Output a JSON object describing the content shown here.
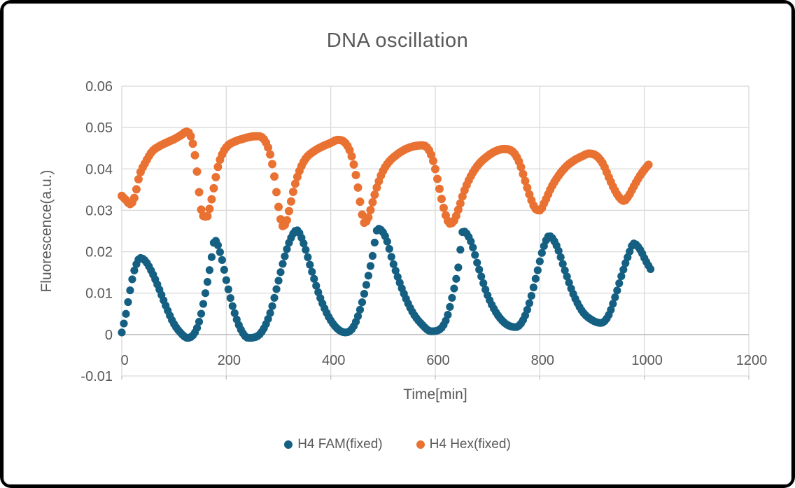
{
  "figure": {
    "outer_border_color": "#000000",
    "inner_border_color": "#d9d9d9",
    "background_color": "#ffffff"
  },
  "chart_data": {
    "type": "scatter",
    "title": "DNA oscillation",
    "xlabel": "Time[min]",
    "ylabel": "Fluorescence(a.u.)",
    "grid": true,
    "legend_position": "bottom",
    "marker": "circle",
    "sample_interval_min": 4,
    "x_axis": {
      "min": 0,
      "max": 1200,
      "tick_step": 200,
      "tick_labels": [
        "0",
        "200",
        "400",
        "600",
        "800",
        "1000",
        "1200"
      ]
    },
    "y_axis": {
      "min": -0.01,
      "max": 0.06,
      "tick_step": 0.01,
      "tick_labels": [
        "0.06",
        "0.05",
        "0.04",
        "0.03",
        "0.02",
        "0.01",
        "0",
        "-0.01"
      ]
    },
    "styles": {
      "text_color": "#595959",
      "gridline_color": "#d9d9d9",
      "axis_line_color": "#bfbfbf"
    },
    "series": [
      {
        "name": "H4 FAM(fixed)",
        "color": "#156082",
        "marker_radius": 5.6,
        "points": [
          [
            0,
            0.0005
          ],
          [
            8,
            0.005
          ],
          [
            15,
            0.01
          ],
          [
            22,
            0.0145
          ],
          [
            28,
            0.017
          ],
          [
            35,
            0.0185
          ],
          [
            45,
            0.0178
          ],
          [
            58,
            0.015
          ],
          [
            70,
            0.0115
          ],
          [
            84,
            0.007
          ],
          [
            98,
            0.003
          ],
          [
            112,
            0.0005
          ],
          [
            126,
            -0.0008
          ],
          [
            140,
            0.0005
          ],
          [
            150,
            0.004
          ],
          [
            160,
            0.01
          ],
          [
            170,
            0.017
          ],
          [
            178,
            0.0228
          ],
          [
            190,
            0.019
          ],
          [
            202,
            0.012
          ],
          [
            214,
            0.006
          ],
          [
            228,
            0.0012
          ],
          [
            242,
            -0.0008
          ],
          [
            258,
            -0.0005
          ],
          [
            272,
            0.0015
          ],
          [
            286,
            0.006
          ],
          [
            298,
            0.012
          ],
          [
            310,
            0.018
          ],
          [
            322,
            0.0228
          ],
          [
            335,
            0.0252
          ],
          [
            348,
            0.022
          ],
          [
            362,
            0.016
          ],
          [
            378,
            0.0095
          ],
          [
            395,
            0.0045
          ],
          [
            412,
            0.0015
          ],
          [
            428,
            0.0005
          ],
          [
            443,
            0.0018
          ],
          [
            456,
            0.006
          ],
          [
            468,
            0.012
          ],
          [
            480,
            0.019
          ],
          [
            490,
            0.0256
          ],
          [
            505,
            0.0235
          ],
          [
            520,
            0.017
          ],
          [
            538,
            0.0105
          ],
          [
            556,
            0.0055
          ],
          [
            574,
            0.0025
          ],
          [
            592,
            0.0008
          ],
          [
            608,
            0.0012
          ],
          [
            622,
            0.004
          ],
          [
            634,
            0.01
          ],
          [
            645,
            0.017
          ],
          [
            653,
            0.025
          ],
          [
            668,
            0.0225
          ],
          [
            682,
            0.0165
          ],
          [
            700,
            0.0095
          ],
          [
            718,
            0.005
          ],
          [
            736,
            0.0025
          ],
          [
            754,
            0.0018
          ],
          [
            768,
            0.0035
          ],
          [
            781,
            0.008
          ],
          [
            794,
            0.0145
          ],
          [
            807,
            0.021
          ],
          [
            818,
            0.0238
          ],
          [
            832,
            0.0215
          ],
          [
            848,
            0.0155
          ],
          [
            865,
            0.0095
          ],
          [
            882,
            0.0055
          ],
          [
            900,
            0.0035
          ],
          [
            917,
            0.0028
          ],
          [
            931,
            0.0045
          ],
          [
            944,
            0.009
          ],
          [
            957,
            0.0145
          ],
          [
            969,
            0.019
          ],
          [
            980,
            0.022
          ],
          [
            992,
            0.0205
          ],
          [
            1002,
            0.018
          ],
          [
            1012,
            0.0158
          ]
        ]
      },
      {
        "name": "H4 Hex(fixed)",
        "color": "#E97132",
        "marker_radius": 6.0,
        "points": [
          [
            0,
            0.0335
          ],
          [
            8,
            0.0325
          ],
          [
            16,
            0.0315
          ],
          [
            24,
            0.033
          ],
          [
            34,
            0.0385
          ],
          [
            45,
            0.0415
          ],
          [
            58,
            0.0442
          ],
          [
            72,
            0.0455
          ],
          [
            88,
            0.0465
          ],
          [
            102,
            0.0473
          ],
          [
            114,
            0.0482
          ],
          [
            124,
            0.049
          ],
          [
            131,
            0.0482
          ],
          [
            137,
            0.0455
          ],
          [
            142,
            0.0415
          ],
          [
            146,
            0.037
          ],
          [
            150,
            0.032
          ],
          [
            155,
            0.0287
          ],
          [
            163,
            0.0285
          ],
          [
            170,
            0.0315
          ],
          [
            177,
            0.036
          ],
          [
            184,
            0.0405
          ],
          [
            192,
            0.0435
          ],
          [
            202,
            0.0455
          ],
          [
            216,
            0.0466
          ],
          [
            232,
            0.0473
          ],
          [
            248,
            0.0478
          ],
          [
            262,
            0.0479
          ],
          [
            274,
            0.0468
          ],
          [
            284,
            0.0435
          ],
          [
            291,
            0.039
          ],
          [
            297,
            0.0335
          ],
          [
            303,
            0.0285
          ],
          [
            308,
            0.0262
          ],
          [
            315,
            0.0272
          ],
          [
            322,
            0.031
          ],
          [
            330,
            0.0355
          ],
          [
            340,
            0.0395
          ],
          [
            352,
            0.0425
          ],
          [
            368,
            0.0443
          ],
          [
            385,
            0.0455
          ],
          [
            400,
            0.0463
          ],
          [
            413,
            0.047
          ],
          [
            426,
            0.0465
          ],
          [
            437,
            0.0442
          ],
          [
            445,
            0.0405
          ],
          [
            452,
            0.0355
          ],
          [
            458,
            0.0305
          ],
          [
            464,
            0.027
          ],
          [
            471,
            0.028
          ],
          [
            479,
            0.0315
          ],
          [
            488,
            0.0355
          ],
          [
            498,
            0.039
          ],
          [
            510,
            0.0415
          ],
          [
            525,
            0.0433
          ],
          [
            542,
            0.0447
          ],
          [
            560,
            0.0455
          ],
          [
            576,
            0.0457
          ],
          [
            588,
            0.0445
          ],
          [
            597,
            0.0415
          ],
          [
            605,
            0.037
          ],
          [
            613,
            0.0322
          ],
          [
            620,
            0.0288
          ],
          [
            628,
            0.0268
          ],
          [
            636,
            0.0275
          ],
          [
            645,
            0.0305
          ],
          [
            655,
            0.0345
          ],
          [
            667,
            0.038
          ],
          [
            681,
            0.0408
          ],
          [
            697,
            0.0428
          ],
          [
            714,
            0.0442
          ],
          [
            731,
            0.0448
          ],
          [
            748,
            0.0442
          ],
          [
            761,
            0.0415
          ],
          [
            771,
            0.0375
          ],
          [
            781,
            0.0335
          ],
          [
            791,
            0.0305
          ],
          [
            800,
            0.03
          ],
          [
            810,
            0.0322
          ],
          [
            822,
            0.0355
          ],
          [
            835,
            0.0382
          ],
          [
            850,
            0.0405
          ],
          [
            865,
            0.042
          ],
          [
            880,
            0.043
          ],
          [
            894,
            0.0437
          ],
          [
            908,
            0.0432
          ],
          [
            921,
            0.0412
          ],
          [
            932,
            0.038
          ],
          [
            943,
            0.035
          ],
          [
            953,
            0.033
          ],
          [
            961,
            0.0323
          ],
          [
            970,
            0.0335
          ],
          [
            980,
            0.0358
          ],
          [
            990,
            0.038
          ],
          [
            1000,
            0.0398
          ],
          [
            1010,
            0.0413
          ]
        ]
      }
    ]
  }
}
